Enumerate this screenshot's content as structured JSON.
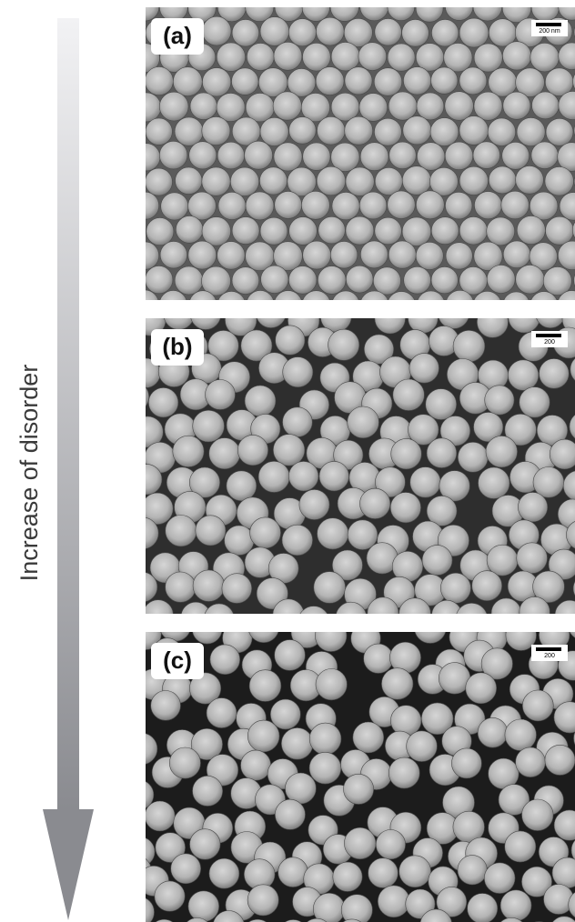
{
  "side_label": "Increase of disorder",
  "panels": [
    {
      "label": "(a)",
      "scale_bar": "200 nm"
    },
    {
      "label": "(b)",
      "scale_bar": "200"
    },
    {
      "label": "(c)",
      "scale_bar": "200"
    }
  ]
}
